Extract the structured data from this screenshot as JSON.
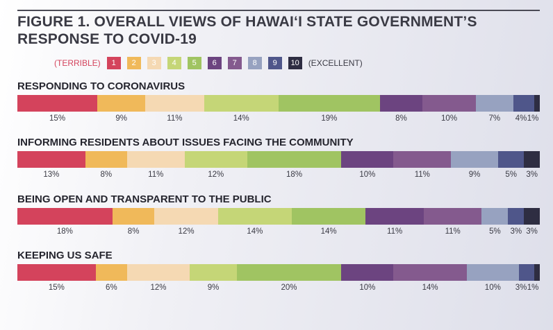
{
  "chart_data": {
    "type": "bar",
    "orientation": "horizontal-stacked-100",
    "title": "FIGURE 1. OVERALL VIEWS OF HAWAI‘I STATE GOVERNMENT’S RESPONSE TO COVID-19",
    "legend": {
      "left_label": "(TERRIBLE)",
      "right_label": "(EXCELLENT)",
      "placement": "top",
      "entries": [
        "1",
        "2",
        "3",
        "4",
        "5",
        "6",
        "7",
        "8",
        "9",
        "10"
      ]
    },
    "colors": [
      "#d4435c",
      "#f0b95a",
      "#f5d9b3",
      "#c5d677",
      "#a0c462",
      "#6c4480",
      "#845a8e",
      "#97a2c0",
      "#4f568a",
      "#2e2d42"
    ],
    "categories": [
      "RESPONDING TO CORONAVIRUS",
      "INFORMING RESIDENTS ABOUT ISSUES FACING THE COMMUNITY",
      "BEING OPEN AND TRANSPARENT TO THE PUBLIC",
      "KEEPING US SAFE"
    ],
    "rows": [
      {
        "label": "RESPONDING TO CORONAVIRUS",
        "values": [
          15,
          9,
          11,
          14,
          19,
          8,
          10,
          7,
          4,
          1
        ]
      },
      {
        "label": "INFORMING RESIDENTS ABOUT ISSUES FACING THE COMMUNITY",
        "values": [
          13,
          8,
          11,
          12,
          18,
          10,
          11,
          9,
          5,
          3
        ]
      },
      {
        "label": "BEING OPEN AND TRANSPARENT TO THE PUBLIC",
        "values": [
          18,
          8,
          12,
          14,
          14,
          11,
          11,
          5,
          3,
          3
        ]
      },
      {
        "label": "KEEPING US SAFE",
        "values": [
          15,
          6,
          12,
          9,
          20,
          10,
          14,
          10,
          3,
          1
        ]
      }
    ],
    "unit": "%"
  }
}
